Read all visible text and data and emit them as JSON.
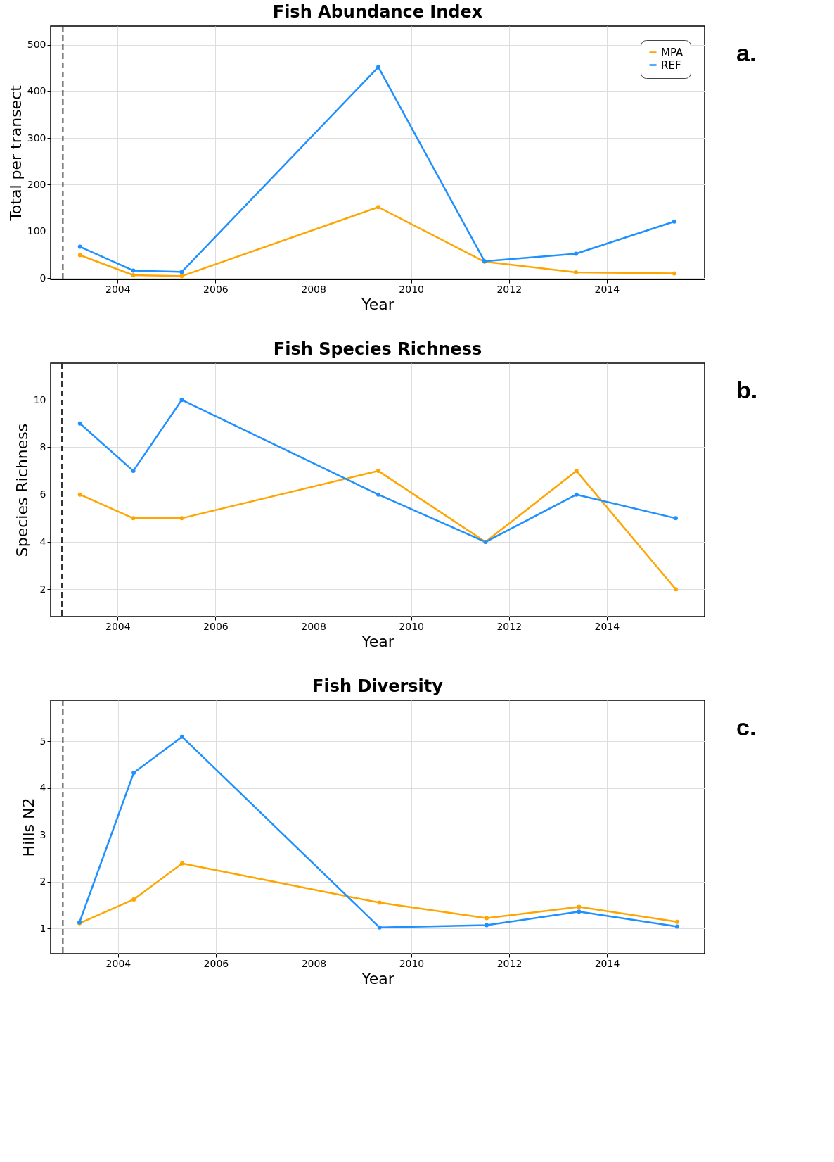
{
  "chart_data": [
    {
      "type": "line",
      "title": "Fish Abundance Index",
      "xlabel": "Year",
      "ylabel": "Total per transect",
      "x": [
        2003.23,
        2004.32,
        2005.31,
        2009.33,
        2011.5,
        2013.37,
        2015.38
      ],
      "series": [
        {
          "name": "MPA",
          "color": "#ffa500",
          "values": [
            49,
            6,
            4,
            152,
            35,
            12,
            10
          ]
        },
        {
          "name": "REF",
          "color": "#1e90ff",
          "values": [
            67,
            16,
            13,
            452,
            36,
            52,
            121
          ]
        }
      ],
      "xlim": [
        2002.63,
        2016
      ],
      "xticks": [
        2004,
        2006,
        2008,
        2010,
        2012,
        2014
      ],
      "ylim": [
        -3,
        540
      ],
      "yticks": [
        0,
        100,
        200,
        300,
        400,
        500
      ],
      "ref_lines": [
        {
          "axis": "x",
          "value": 2002.88,
          "label": null,
          "color": "#333333",
          "line_style": "dashed"
        }
      ],
      "annotations": [
        "a."
      ],
      "grid": true,
      "legend": "top right",
      "marker": "circle",
      "line_style": "solid"
    },
    {
      "type": "line",
      "title": "Fish Species Richness",
      "xlabel": "Year",
      "ylabel": "Species Richness",
      "x": [
        2003.23,
        2004.32,
        2005.31,
        2009.33,
        2011.52,
        2013.38,
        2015.41
      ],
      "series": [
        {
          "name": "MPA",
          "color": "#ffa500",
          "values": [
            6,
            5,
            5,
            7,
            4,
            7,
            2
          ]
        },
        {
          "name": "REF",
          "color": "#1e90ff",
          "values": [
            9,
            7,
            10,
            6,
            4,
            6,
            5
          ]
        }
      ],
      "xlim": [
        2002.63,
        2016
      ],
      "xticks": [
        2004,
        2006,
        2008,
        2010,
        2012,
        2014
      ],
      "ylim": [
        0.85,
        11.55
      ],
      "yticks": [
        2,
        4,
        6,
        8,
        10
      ],
      "ref_lines": [
        {
          "axis": "x",
          "value": 2002.86,
          "label": null,
          "color": "#333333",
          "line_style": "dashed"
        }
      ],
      "annotations": [
        "b."
      ],
      "grid": true,
      "legend": "top right",
      "marker": "circle",
      "line_style": "solid"
    },
    {
      "type": "line",
      "title": "Fish Diversity",
      "xlabel": "Year",
      "ylabel": "Hills N2",
      "x": [
        2003.21,
        2004.32,
        2005.31,
        2009.35,
        2011.54,
        2013.43,
        2015.44
      ],
      "series": [
        {
          "name": "MPA",
          "color": "#ffa500",
          "values": [
            1.11,
            1.62,
            2.39,
            1.55,
            1.22,
            1.46,
            1.14
          ]
        },
        {
          "name": "REF",
          "color": "#1e90ff",
          "values": [
            1.13,
            4.33,
            5.1,
            1.02,
            1.07,
            1.36,
            1.04
          ]
        }
      ],
      "xlim": [
        2002.62,
        2016
      ],
      "xticks": [
        2004,
        2006,
        2008,
        2010,
        2012,
        2014
      ],
      "ylim": [
        0.46,
        5.88
      ],
      "yticks": [
        1,
        2,
        3,
        4,
        5
      ],
      "ref_lines": [
        {
          "axis": "x",
          "value": 2002.87,
          "label": null,
          "color": "#333333",
          "line_style": "dashed"
        }
      ],
      "annotations": [
        "c."
      ],
      "grid": true,
      "legend": "top right",
      "marker": "circle",
      "line_style": "solid"
    }
  ]
}
